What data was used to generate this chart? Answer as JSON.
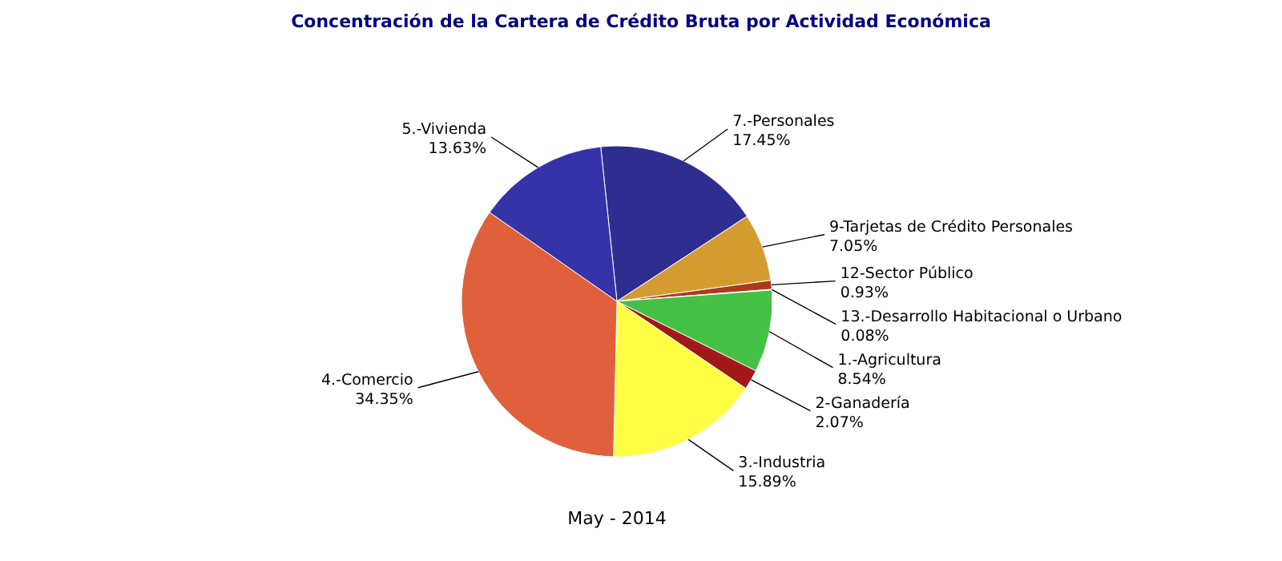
{
  "chart_data": {
    "type": "pie",
    "title": "Concentración de la Cartera de Crédito Bruta por Actividad Económica",
    "xlabel": "May - 2014",
    "categories": [
      "7.-Personales",
      "9-Tarjetas de Crédito Personales",
      "12-Sector Público",
      "13.-Desarrollo Habitacional o Urbano",
      "1.-Agricultura",
      "2-Ganadería",
      "3.-Industria",
      "4.-Comercio",
      "5.-Vivienda"
    ],
    "values": [
      17.45,
      7.05,
      0.93,
      0.08,
      8.54,
      2.07,
      15.89,
      34.35,
      13.63
    ],
    "value_labels": [
      "17.45%",
      "7.05%",
      "0.93%",
      "0.08%",
      "8.54%",
      "2.07%",
      "15.89%",
      "34.35%",
      "13.63%"
    ],
    "colors": [
      "#2e2e90",
      "#d49c30",
      "#a83c1c",
      "#505050",
      "#44c044",
      "#a01818",
      "#ffff44",
      "#e0603c",
      "#3434a8"
    ]
  }
}
